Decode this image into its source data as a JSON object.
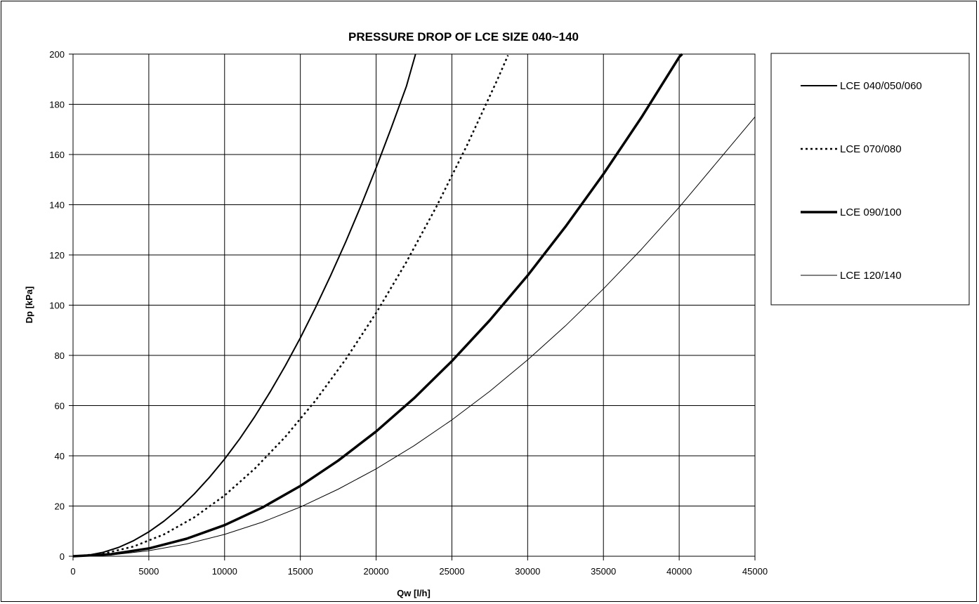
{
  "chart_data": {
    "type": "line",
    "title": "PRESSURE DROP OF LCE SIZE 040~140",
    "xlabel": "Qw [l/h]",
    "ylabel": "Dp [kPa]",
    "xlim": [
      0,
      45000
    ],
    "ylim": [
      0,
      200
    ],
    "x_ticks": [
      0,
      5000,
      10000,
      15000,
      20000,
      25000,
      30000,
      35000,
      40000,
      45000
    ],
    "y_ticks": [
      0,
      20,
      40,
      60,
      80,
      100,
      120,
      140,
      160,
      180,
      200
    ],
    "grid": true,
    "legend_position": "right",
    "series": [
      {
        "name": "LCE 040/050/060",
        "style": "solid-medium",
        "x": [
          0,
          1000,
          2000,
          3000,
          4000,
          5000,
          6000,
          7000,
          8000,
          9000,
          10000,
          11000,
          12000,
          13000,
          14000,
          15000,
          16000,
          17000,
          18000,
          19000,
          20000,
          21000,
          22000,
          22600
        ],
        "y": [
          0,
          0.4,
          1.6,
          3.5,
          6.2,
          9.7,
          14,
          19,
          24.8,
          31.4,
          38.7,
          46.8,
          55.7,
          65.4,
          75.8,
          87,
          99,
          111.8,
          125.3,
          139.6,
          154.7,
          170.6,
          187.2,
          200
        ]
      },
      {
        "name": "LCE 070/080",
        "style": "dotted",
        "x": [
          0,
          2000,
          4000,
          6000,
          8000,
          10000,
          12000,
          14000,
          16000,
          18000,
          20000,
          22000,
          24000,
          26000,
          28000,
          28700
        ],
        "y": [
          0,
          1,
          3.9,
          8.7,
          15.5,
          24.2,
          34.9,
          47.5,
          62,
          78.5,
          96.9,
          117.2,
          139.5,
          163.7,
          189.8,
          199.5
        ]
      },
      {
        "name": "LCE 090/100",
        "style": "solid-thick",
        "x": [
          0,
          2500,
          5000,
          7500,
          10000,
          12500,
          15000,
          17500,
          20000,
          22500,
          25000,
          27500,
          30000,
          32500,
          35000,
          37500,
          40000,
          40200
        ],
        "y": [
          0,
          0.8,
          3.1,
          7,
          12.4,
          19.4,
          28,
          38.1,
          49.7,
          62.9,
          77.7,
          94,
          111.8,
          131.3,
          152.2,
          174.7,
          198.8,
          200
        ]
      },
      {
        "name": "LCE 120/140",
        "style": "solid-thin",
        "x": [
          0,
          2500,
          5000,
          7500,
          10000,
          12500,
          15000,
          17500,
          20000,
          22500,
          25000,
          27500,
          30000,
          32500,
          35000,
          37500,
          40000,
          42500,
          45000
        ],
        "y": [
          0,
          0.5,
          2.2,
          4.9,
          8.7,
          13.6,
          19.6,
          26.7,
          34.8,
          44,
          54.3,
          65.7,
          78.2,
          91.8,
          106.5,
          122.2,
          139,
          157,
          175
        ]
      }
    ]
  },
  "colors": {
    "line": "#000000",
    "grid": "#000000",
    "background": "#ffffff"
  }
}
